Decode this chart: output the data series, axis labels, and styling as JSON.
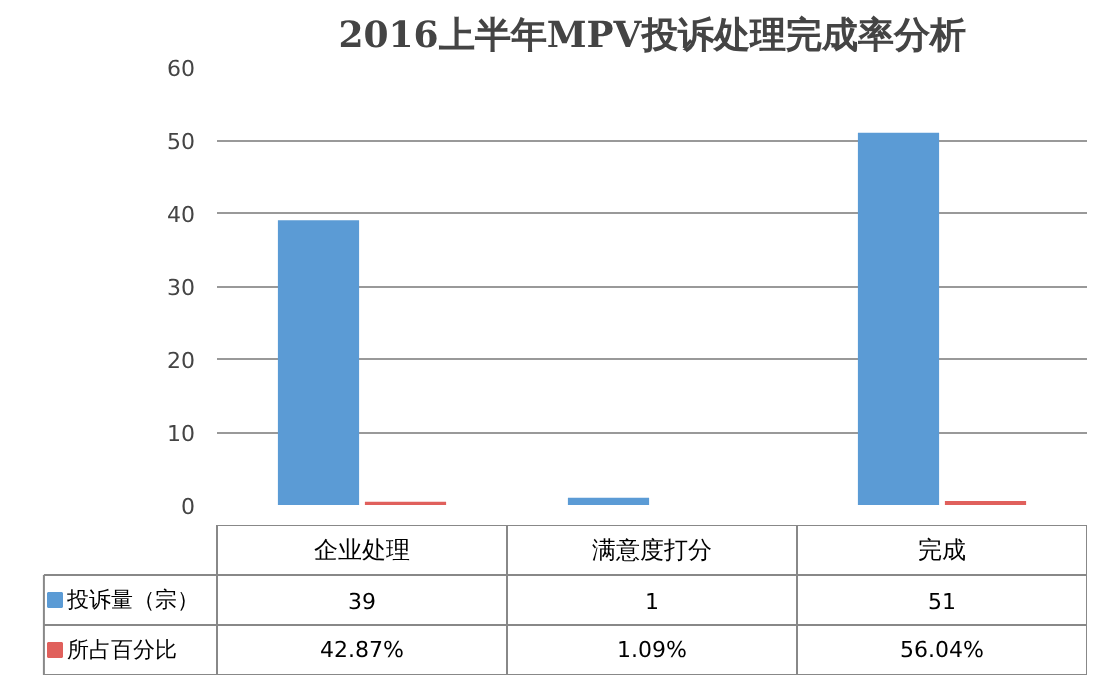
{
  "chart_data": {
    "type": "bar",
    "title": "2016上半年MPV投诉处理完成率分析",
    "categories": [
      "企业处理",
      "满意度打分",
      "完成"
    ],
    "series": [
      {
        "name": "投诉量（宗）",
        "color": "#5b9bd5",
        "values": [
          39,
          1,
          51
        ],
        "value_labels": [
          "39",
          "1",
          "51"
        ]
      },
      {
        "name": "所占百分比",
        "color": "#e0605c",
        "values": [
          0.4287,
          0.0109,
          0.5604
        ],
        "value_labels": [
          "42.87%",
          "1.09%",
          "56.04%"
        ]
      }
    ],
    "ylim": [
      0,
      60
    ],
    "yticks": [
      0,
      10,
      20,
      30,
      40,
      50,
      60
    ],
    "grid": "y",
    "legend": "bottom"
  }
}
